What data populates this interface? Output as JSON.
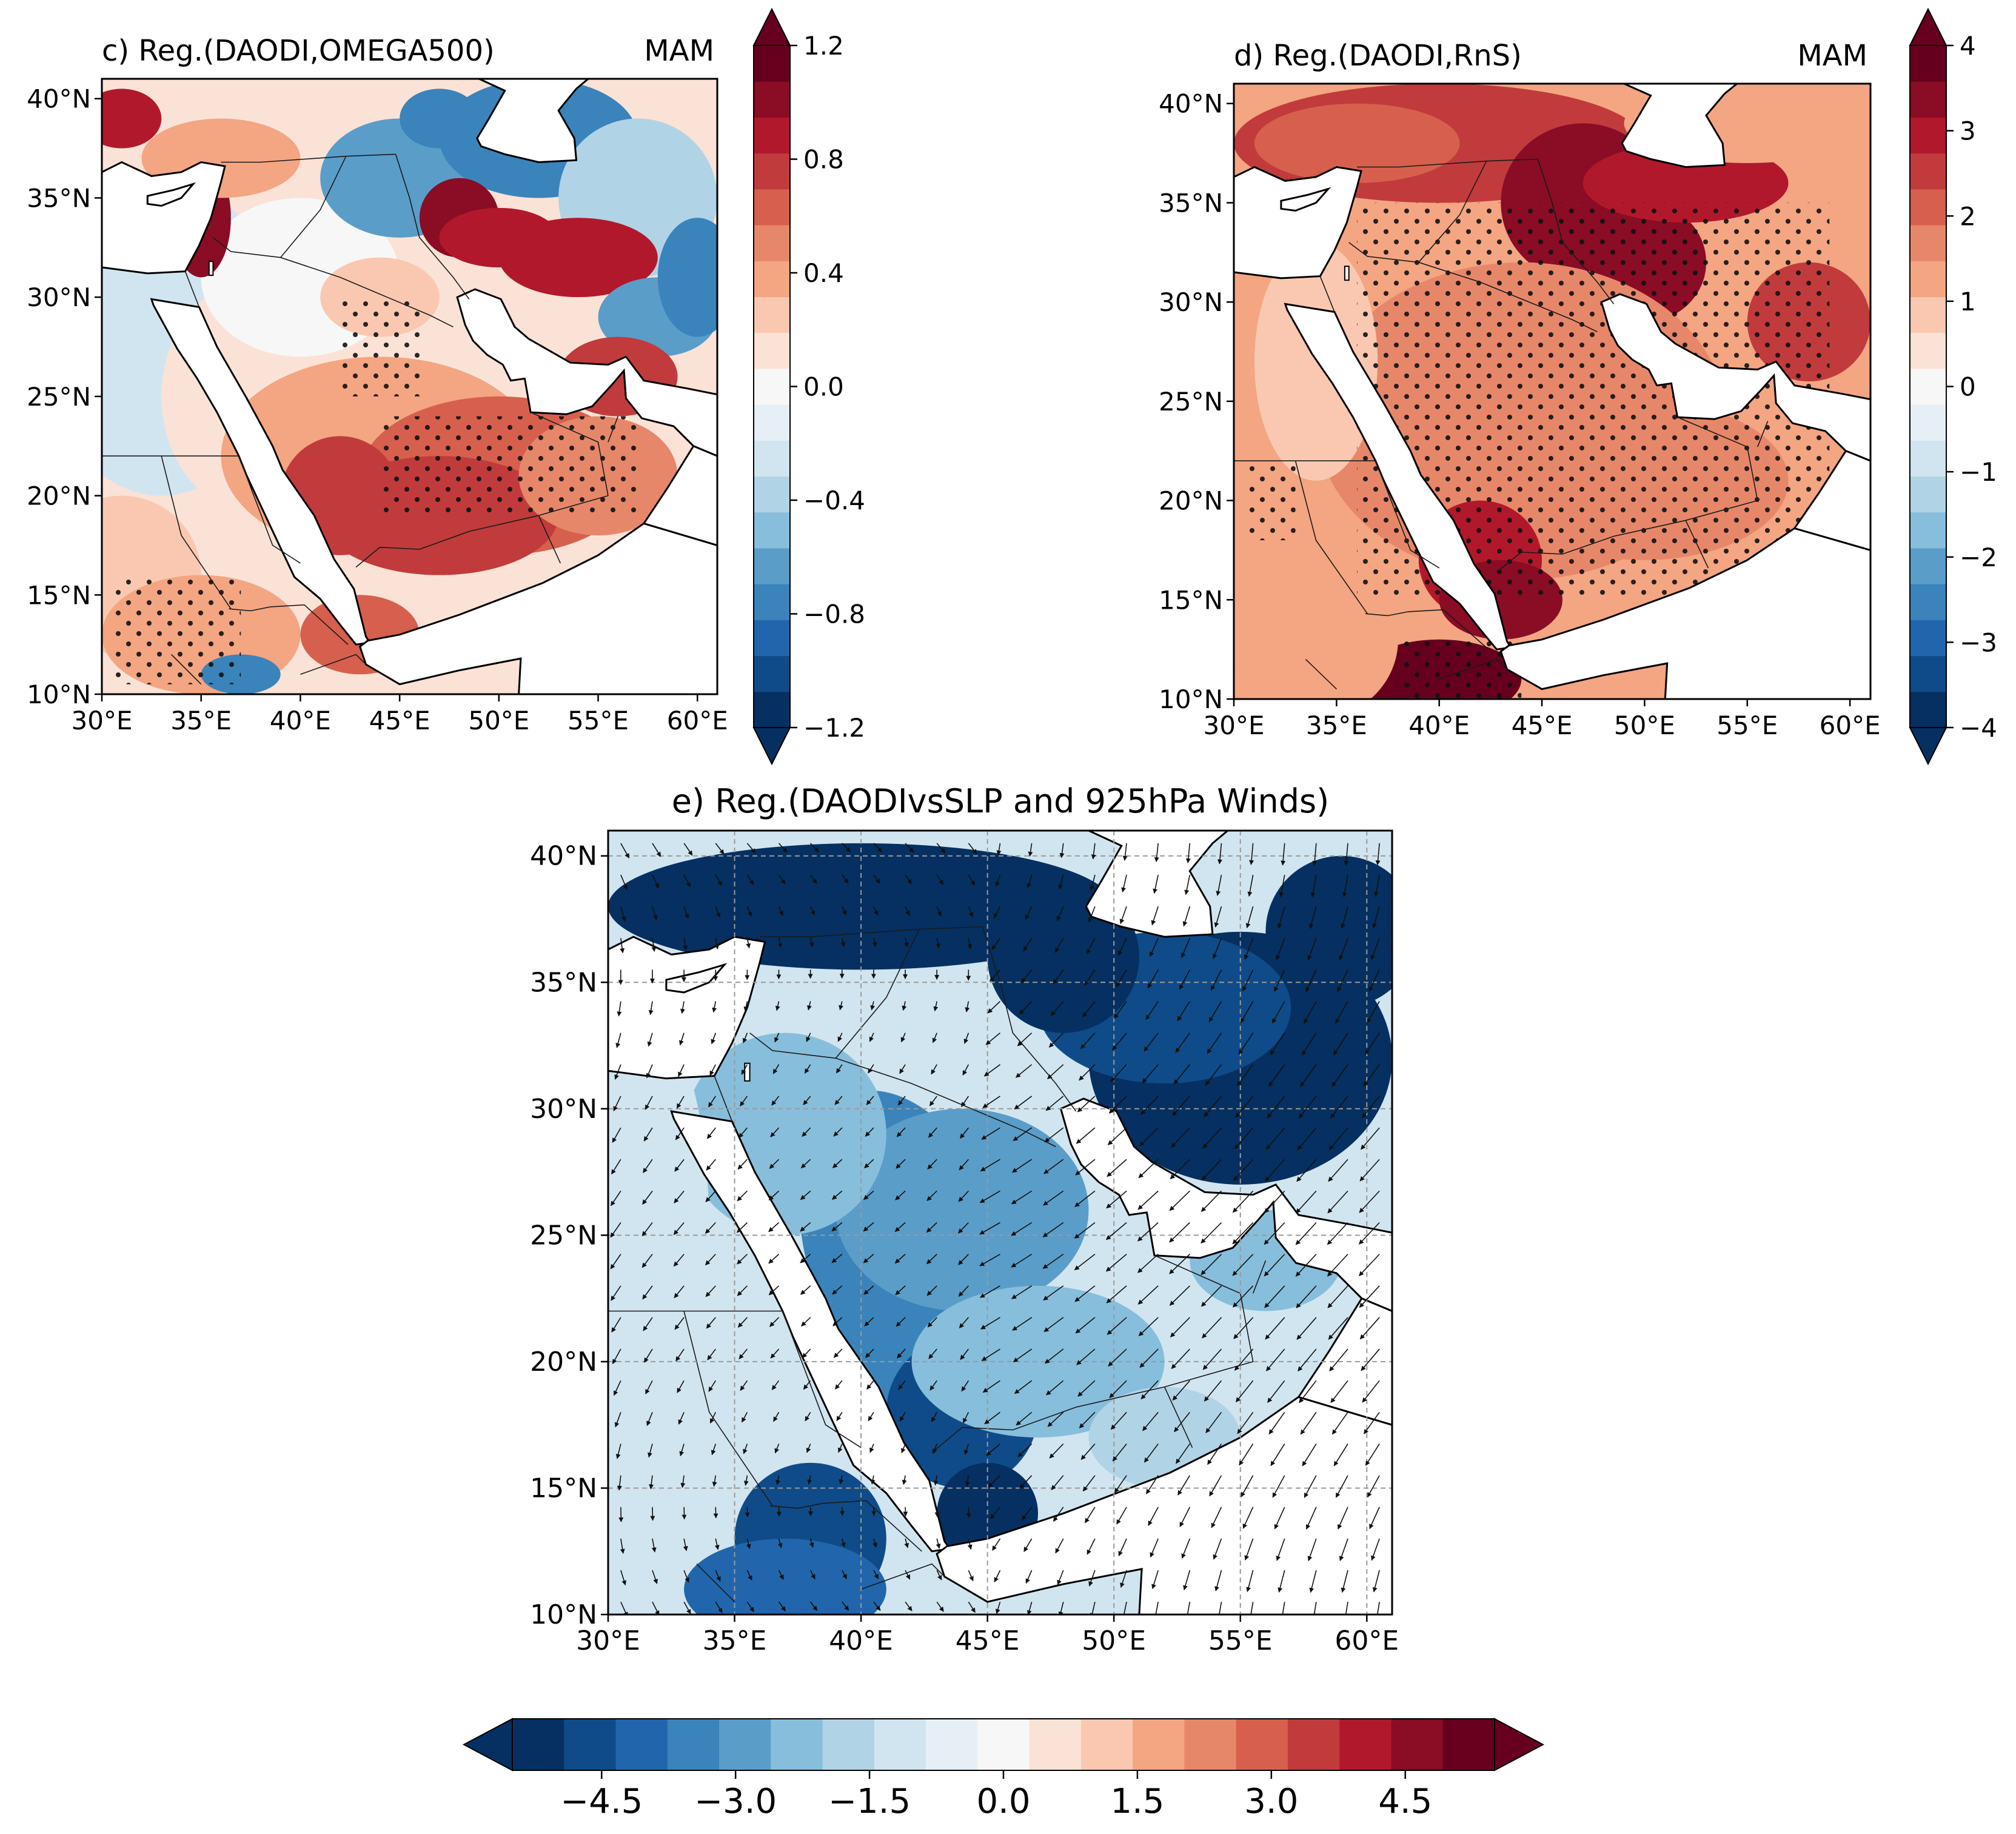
{
  "colors": {
    "ramp": [
      "#053061",
      "#0f4b88",
      "#2166ac",
      "#3a84bb",
      "#5a9dc9",
      "#87bedc",
      "#b1d3e6",
      "#d1e5f0",
      "#e6eff5",
      "#f7f7f7",
      "#fbe2d6",
      "#fac8b0",
      "#f4a582",
      "#e7876a",
      "#d6604d",
      "#c13b3c",
      "#b2182b",
      "#8a0c25",
      "#67001f"
    ],
    "coast": "#000000",
    "border": "#1a1a1a",
    "land_blank": "#ffffff"
  },
  "panels": {
    "c": {
      "title": "c) Reg.(DAODI,OMEGA500)",
      "season": "MAM",
      "x_ticks": [
        "30°E",
        "35°E",
        "40°E",
        "45°E",
        "50°E",
        "55°E",
        "60°E"
      ],
      "y_ticks": [
        "10°N",
        "15°N",
        "20°N",
        "25°N",
        "30°N",
        "35°N",
        "40°N"
      ],
      "colorbar_ticks": [
        "1.2",
        "0.8",
        "0.4",
        "0.0",
        "−0.4",
        "−0.8",
        "−1.2"
      ],
      "colorbar_range": [
        -1.2,
        1.2
      ],
      "colorbar_icon": "vertical-colorbar-icon",
      "hatch_icon": "stipple-dots-icon"
    },
    "d": {
      "title": "d) Reg.(DAODI,RnS)",
      "season": "MAM",
      "x_ticks": [
        "30°E",
        "35°E",
        "40°E",
        "45°E",
        "50°E",
        "55°E",
        "60°E"
      ],
      "y_ticks": [
        "10°N",
        "15°N",
        "20°N",
        "25°N",
        "30°N",
        "35°N",
        "40°N"
      ],
      "colorbar_ticks": [
        "4",
        "3",
        "2",
        "1",
        "0",
        "−1",
        "−2",
        "−3",
        "−4"
      ],
      "colorbar_range": [
        -4,
        4
      ],
      "colorbar_icon": "vertical-colorbar-icon",
      "hatch_icon": "stipple-dots-icon"
    },
    "e": {
      "title": "e) Reg.(DAODIvsSLP and 925hPa Winds)",
      "x_ticks": [
        "30°E",
        "35°E",
        "40°E",
        "45°E",
        "50°E",
        "55°E",
        "60°E"
      ],
      "y_ticks": [
        "10°N",
        "15°N",
        "20°N",
        "25°N",
        "30°N",
        "35°N",
        "40°N"
      ],
      "vector_icon": "wind-arrow-icon",
      "gridlines": "dashed"
    }
  },
  "bottom_colorbar": {
    "ticks": [
      "−4.5",
      "−3.0",
      "−1.5",
      "0.0",
      "1.5",
      "3.0",
      "4.5"
    ],
    "range": [
      -5.5,
      5.5
    ]
  },
  "map_extent": {
    "lon": [
      30,
      61
    ],
    "lat": [
      10,
      41
    ]
  }
}
